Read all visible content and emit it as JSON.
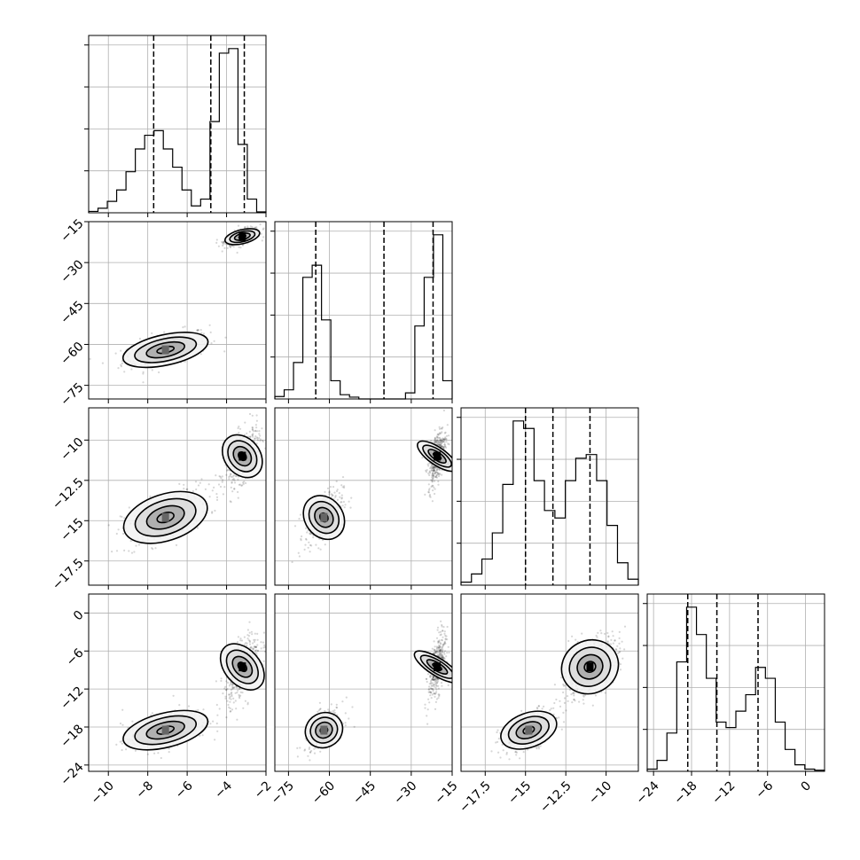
{
  "chart_data": {
    "type": "scatter",
    "kind": "corner-plot",
    "grid": true,
    "parameters": [
      {
        "range": [
          -11,
          -2
        ],
        "ticks": [
          -10,
          -8,
          -6,
          -4,
          -2
        ],
        "modes": [
          {
            "weight": 0.4,
            "mean": -7.1,
            "sd": 1.1
          },
          {
            "weight": 0.6,
            "mean": -3.2,
            "sd": 0.45
          }
        ],
        "quantiles": [
          -7.7,
          -4.8,
          -3.1
        ]
      },
      {
        "range": [
          -80,
          -15
        ],
        "ticks": [
          -75,
          -60,
          -45,
          -30,
          -15
        ],
        "modes": [
          {
            "weight": 0.4,
            "mean": -62,
            "sd": 3.5
          },
          {
            "weight": 0.6,
            "mean": -20.5,
            "sd": 1.6
          }
        ],
        "quantiles": [
          -65,
          -40,
          -22
        ]
      },
      {
        "range": [
          -19,
          -8
        ],
        "ticks": [
          -17.5,
          -15.0,
          -12.5,
          -10.0
        ],
        "modes": [
          {
            "weight": 0.45,
            "mean": -14.8,
            "sd": 0.9
          },
          {
            "weight": 0.55,
            "mean": -11.0,
            "sd": 0.9
          }
        ],
        "quantiles": [
          -15.0,
          -13.3,
          -11.0
        ]
      },
      {
        "range": [
          -25,
          3
        ],
        "ticks": [
          -24,
          -18,
          -12,
          -6,
          0
        ],
        "modes": [
          {
            "weight": 0.45,
            "mean": -18.5,
            "sd": 1.7
          },
          {
            "weight": 0.55,
            "mean": -8.5,
            "sd": 2.6
          }
        ],
        "quantiles": [
          -18.6,
          -14.0,
          -7.5
        ]
      }
    ],
    "histograms": [
      {
        "counts": [
          0.3,
          1,
          2.5,
          5,
          9,
          14,
          17,
          18,
          14,
          10,
          5,
          1.5,
          3,
          20,
          35,
          36,
          15,
          3,
          0.2
        ]
      },
      {
        "counts": [
          0.4,
          1.5,
          6,
          20,
          22,
          13,
          3,
          0.7,
          0.3,
          0,
          0,
          0,
          0,
          0,
          1,
          12,
          20,
          27,
          3
        ]
      },
      {
        "counts": [
          0.4,
          1.5,
          3.5,
          7,
          13.5,
          22,
          21,
          14,
          10,
          9,
          14,
          17,
          17.5,
          14,
          8,
          3,
          0.8
        ]
      },
      {
        "counts": [
          0.4,
          2,
          7,
          20,
          30,
          25,
          17,
          9,
          8,
          11,
          14,
          19,
          17,
          9,
          4,
          1.2,
          0.4,
          0.2
        ]
      }
    ],
    "panels": [
      {
        "row": 1,
        "col": 0
      },
      {
        "row": 2,
        "col": 0
      },
      {
        "row": 2,
        "col": 1
      },
      {
        "row": 3,
        "col": 0
      },
      {
        "row": 3,
        "col": 1
      },
      {
        "row": 3,
        "col": 2
      }
    ]
  }
}
